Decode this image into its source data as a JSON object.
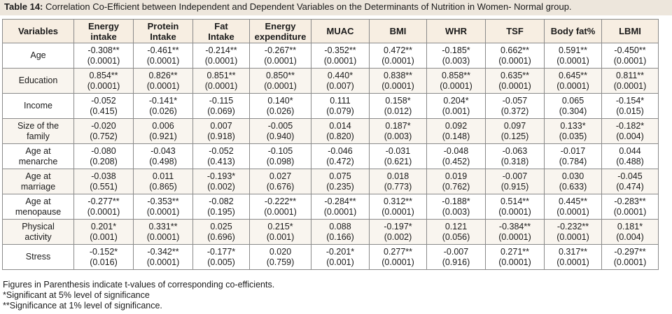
{
  "caption": {
    "label": "Table 14:",
    "text": " Correlation Co-Efficient between Independent and Dependent Variables on the Determinants of Nutrition in Women- Normal group."
  },
  "table": {
    "headers": [
      [
        "Variables"
      ],
      [
        "Energy",
        "intake"
      ],
      [
        "Protein",
        "Intake"
      ],
      [
        "Fat",
        "Intake"
      ],
      [
        "Energy",
        "expenditure"
      ],
      [
        "MUAC"
      ],
      [
        "BMI"
      ],
      [
        "WHR"
      ],
      [
        "TSF"
      ],
      [
        "Body fat%"
      ],
      [
        "LBMI"
      ]
    ],
    "rows": [
      {
        "label": [
          "Age"
        ],
        "cells": [
          [
            "-0.308**",
            "(0.0001)"
          ],
          [
            "-0.461**",
            "(0.0001)"
          ],
          [
            "-0.214**",
            "(0.0001)"
          ],
          [
            "-0.267**",
            "(0.0001)"
          ],
          [
            "-0.352**",
            "(0.0001)"
          ],
          [
            "0.472**",
            "(0.0001)"
          ],
          [
            "-0.185*",
            "(0.003)"
          ],
          [
            "0.662**",
            "(0.0001)"
          ],
          [
            "0.591**",
            "(0.0001)"
          ],
          [
            "-0.450**",
            "(0.0001)"
          ]
        ]
      },
      {
        "label": [
          "Education"
        ],
        "cells": [
          [
            "0.854**",
            "(0.0001)"
          ],
          [
            "0.826**",
            "(0.0001)"
          ],
          [
            "0.851**",
            "(0.0001)"
          ],
          [
            "0.850**",
            "(0.0001)"
          ],
          [
            "0.440*",
            "(0.007)"
          ],
          [
            "0.838**",
            "(0.0001)"
          ],
          [
            "0.858**",
            "(0.0001)"
          ],
          [
            "0.635**",
            "(0.0001)"
          ],
          [
            "0.645**",
            "(0.0001)"
          ],
          [
            "0.811**",
            "(0.0001)"
          ]
        ]
      },
      {
        "label": [
          "Income"
        ],
        "cells": [
          [
            "-0.052",
            "(0.415)"
          ],
          [
            "-0.141*",
            "(0.026)"
          ],
          [
            "-0.115",
            "(0.069)"
          ],
          [
            "0.140*",
            "(0.026)"
          ],
          [
            "0.111",
            "(0.079)"
          ],
          [
            "0.158*",
            "(0.012)"
          ],
          [
            "0.204*",
            "(0.001)"
          ],
          [
            "-0.057",
            "(0.372)"
          ],
          [
            "0.065",
            "(0.304)"
          ],
          [
            "-0.154*",
            "(0.015)"
          ]
        ]
      },
      {
        "label": [
          "Size of the",
          "family"
        ],
        "cells": [
          [
            "-0.020",
            "(0.752)"
          ],
          [
            "0.006",
            "(0.921)"
          ],
          [
            "0.007",
            "(0.918)"
          ],
          [
            "-0.005",
            "(0.940)"
          ],
          [
            "0.014",
            "(0.820)"
          ],
          [
            "0.187*",
            "(0.003)"
          ],
          [
            "0.092",
            "(0.148)"
          ],
          [
            "0.097",
            "(0.125)"
          ],
          [
            "0.133*",
            "(0.035)"
          ],
          [
            "-0.182*",
            "(0.004)"
          ]
        ]
      },
      {
        "label": [
          "Age at",
          "menarche"
        ],
        "cells": [
          [
            "-0.080",
            "(0.208)"
          ],
          [
            "-0.043",
            "(0.498)"
          ],
          [
            "-0.052",
            "(0.413)"
          ],
          [
            "-0.105",
            "(0.098)"
          ],
          [
            "-0.046",
            "(0.472)"
          ],
          [
            "-0.031",
            "(0.621)"
          ],
          [
            "-0.048",
            "(0.452)"
          ],
          [
            "-0.063",
            "(0.318)"
          ],
          [
            "-0.017",
            "(0.784)"
          ],
          [
            "0.044",
            "(0.488)"
          ]
        ]
      },
      {
        "label": [
          "Age at",
          "marriage"
        ],
        "cells": [
          [
            "-0.038",
            "(0.551)"
          ],
          [
            "0.011",
            "(0.865)"
          ],
          [
            "-0.193*",
            "(0.002)"
          ],
          [
            "0.027",
            "(0.676)"
          ],
          [
            "0.075",
            "(0.235)"
          ],
          [
            "0.018",
            "(0.773)"
          ],
          [
            "0.019",
            "(0.762)"
          ],
          [
            "-0.007",
            "(0.915)"
          ],
          [
            "0.030",
            "(0.633)"
          ],
          [
            "-0.045",
            "(0.474)"
          ]
        ]
      },
      {
        "label": [
          "Age at",
          "menopause"
        ],
        "cells": [
          [
            "-0.277**",
            "(0.0001)"
          ],
          [
            "-0.353**",
            "(0.0001)"
          ],
          [
            "-0.082",
            "(0.195)"
          ],
          [
            "-0.222**",
            "(0.0001)"
          ],
          [
            "-0.284**",
            "(0.0001)"
          ],
          [
            "0.312**",
            "(0.0001)"
          ],
          [
            "-0.188*",
            "(0.003)"
          ],
          [
            "0.514**",
            "(0.0001)"
          ],
          [
            "0.445**",
            "(0.0001)"
          ],
          [
            "-0.283**",
            "(0.0001)"
          ]
        ]
      },
      {
        "label": [
          "Physical",
          "activity"
        ],
        "cells": [
          [
            "0.201*",
            "(0.001)"
          ],
          [
            "0.331**",
            "(0.0001)"
          ],
          [
            "0.025",
            "(0.696)"
          ],
          [
            "0.215*",
            "(0.001)"
          ],
          [
            "0.088",
            "(0.166)"
          ],
          [
            "-0.197*",
            "(0.002)"
          ],
          [
            "0.121",
            "(0.056)"
          ],
          [
            "-0.384**",
            "(0.0001)"
          ],
          [
            "-0.232**",
            "(0.0001)"
          ],
          [
            "0.181*",
            "(0.004)"
          ]
        ]
      },
      {
        "label": [
          "Stress"
        ],
        "cells": [
          [
            "-0.152*",
            "(0.016)"
          ],
          [
            "-0.342**",
            "(0.0001)"
          ],
          [
            "-0.177*",
            "(0.005)"
          ],
          [
            "0.020",
            "(0.759)"
          ],
          [
            "-0.201*",
            "(0.001)"
          ],
          [
            "0.277**",
            "(0.0001)"
          ],
          [
            "-0.007",
            "(0.916)"
          ],
          [
            "0.271**",
            "(0.0001)"
          ],
          [
            "0.317**",
            "(0.0001)"
          ],
          [
            "-0.297**",
            "(0.0001)"
          ]
        ]
      }
    ]
  },
  "notes": [
    "Figures in Parenthesis indicate t-values of corresponding co-efficients.",
    " *Significant at 5% level of significance",
    "**Significance at 1% level of significance."
  ]
}
